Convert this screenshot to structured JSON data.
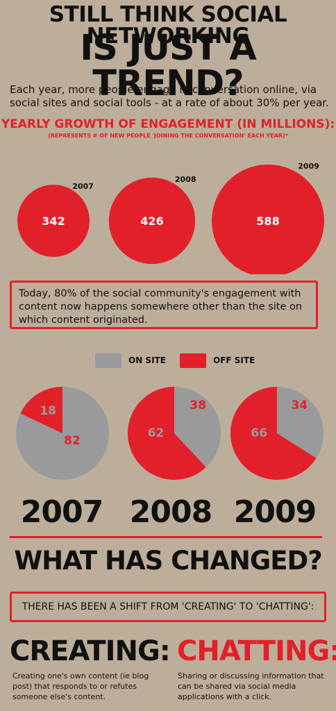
{
  "header": {
    "line1": "STILL THINK SOCIAL NETWORKING",
    "line2": "IS JUST A TREND?"
  },
  "intro": "Each year, more people engage in conversation online, via social sites and social tools - at a rate of about 30% per year.",
  "growth": {
    "title": "YEARLY GROWTH OF ENGAGEMENT (IN MILLIONS):",
    "subtitle": "(REPRESENTS # OF NEW PEOPLE 'JOINING THE CONVERSATION' EACH YEAR)*"
  },
  "note": "Today, 80% of the social community's engagement with content now happens somewhere other than the site on which content originated.",
  "legend": {
    "on_site": "ON SITE",
    "off_site": "OFF SITE"
  },
  "colors": {
    "red": "#e2202a",
    "gray": "#9a9a9c",
    "background": "#bcae9a"
  },
  "chart_data": [
    {
      "type": "bubble",
      "title": "YEARLY GROWTH OF ENGAGEMENT (IN MILLIONS):",
      "categories": [
        "2007",
        "2008",
        "2009"
      ],
      "values": [
        342,
        426,
        588
      ]
    },
    {
      "type": "pie",
      "title": "",
      "legend": [
        "ON SITE",
        "OFF SITE"
      ],
      "pies": [
        {
          "year": "2007",
          "on_site": 82,
          "off_site": 18
        },
        {
          "year": "2008",
          "on_site": 38,
          "off_site": 62
        },
        {
          "year": "2009",
          "on_site": 34,
          "off_site": 66
        }
      ]
    }
  ],
  "changed": {
    "title": "WHAT HAS CHANGED?",
    "shift": "THERE HAS BEEN A SHIFT FROM 'CREATING' TO 'CHATTING':",
    "creating_word": "CREATING:",
    "creating_desc": "Creating one's own content (ie blog post) that responds to or refutes someone else's content.",
    "chatting_word": "CHATTING:",
    "chatting_desc": "Sharing or discussing information that can be shared via social media applications with a click."
  }
}
